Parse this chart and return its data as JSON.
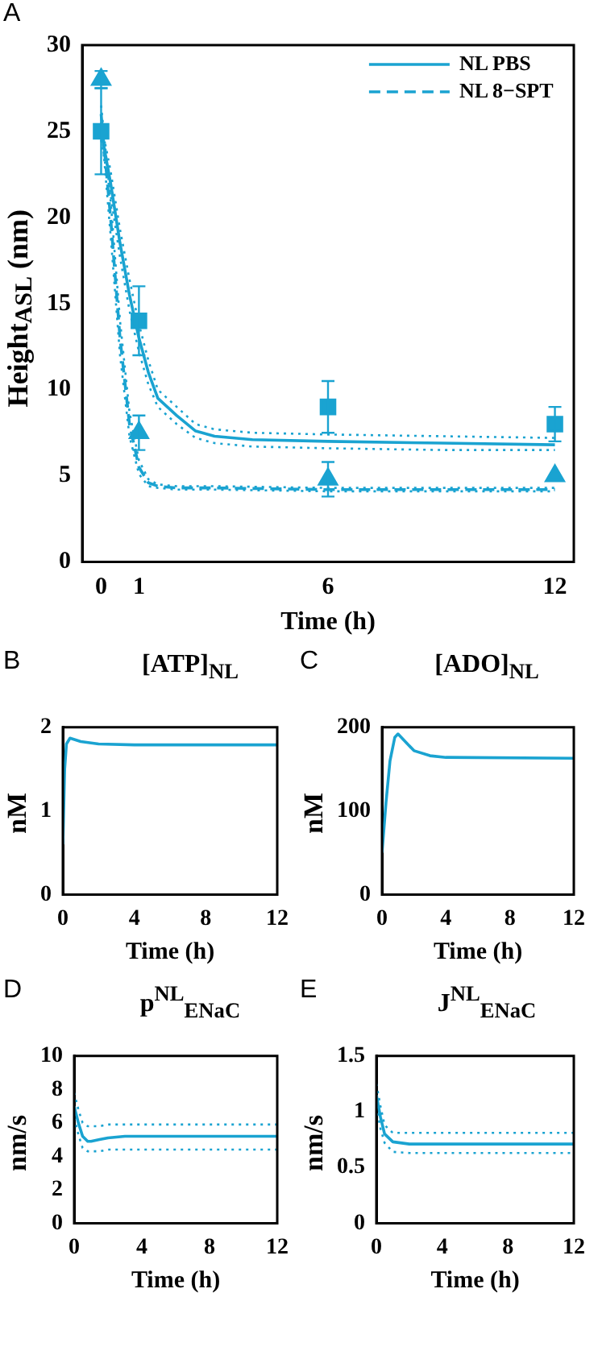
{
  "chart_data": [
    {
      "type": "line",
      "annotations": [
        "A"
      ],
      "xlabel": "Time (h)",
      "ylabel": "Height$_{ASL}$ (nm)",
      "xlim": [
        -0.5,
        12.5
      ],
      "xticks": [
        0,
        1,
        6,
        12
      ],
      "ylim": [
        0,
        30
      ],
      "yticks": [
        0,
        5,
        10,
        15,
        20,
        25,
        30
      ],
      "grid": false,
      "legend": "top right",
      "series": [
        {
          "name": "NL PBS",
          "color": "#1aa3d1",
          "line_style": "solid",
          "marker": "none",
          "x": [
            0,
            0.25,
            0.5,
            0.75,
            1,
            1.25,
            1.5,
            2,
            2.5,
            3,
            4,
            6,
            9,
            12
          ],
          "values": [
            25,
            22,
            18.5,
            15.5,
            13,
            11,
            9.5,
            8.5,
            7.6,
            7.3,
            7.1,
            7,
            6.9,
            6.8
          ]
        },
        {
          "color": "#1aa3d1",
          "line_style": "dotted",
          "marker": "none",
          "x": [
            0,
            0.25,
            0.5,
            0.75,
            1,
            1.25,
            1.5,
            2,
            2.5,
            3,
            4,
            6,
            9,
            12
          ],
          "values": [
            24.5,
            21.3,
            17.7,
            14.6,
            12.2,
            10.3,
            9,
            8,
            7.2,
            6.9,
            6.7,
            6.6,
            6.5,
            6.5
          ]
        },
        {
          "color": "#1aa3d1",
          "line_style": "dotted",
          "marker": "none",
          "x": [
            0,
            0.25,
            0.5,
            0.75,
            1,
            1.25,
            1.5,
            2,
            2.5,
            3,
            4,
            6,
            9,
            12
          ],
          "values": [
            25.5,
            22.7,
            19.3,
            16.4,
            13.8,
            11.7,
            10,
            9,
            8,
            7.7,
            7.5,
            7.4,
            7.3,
            7.2
          ]
        },
        {
          "name": "NL 8−SPT",
          "color": "#1aa3d1",
          "line_style": "dashed",
          "marker": "none",
          "x": [
            0,
            0.25,
            0.5,
            0.75,
            1,
            1.25,
            1.5,
            2,
            3,
            6,
            12
          ],
          "values": [
            26,
            20,
            13,
            8,
            5.5,
            4.6,
            4.4,
            4.3,
            4.3,
            4.2,
            4.2
          ]
        },
        {
          "color": "#1aa3d1",
          "line_style": "dotted",
          "marker": "none",
          "x": [
            0,
            0.25,
            0.5,
            0.75,
            1,
            1.25,
            1.5,
            2,
            3,
            6,
            12
          ],
          "values": [
            25.5,
            19,
            12,
            7.3,
            5.1,
            4.4,
            4.3,
            4.2,
            4.2,
            4.1,
            4.1
          ]
        },
        {
          "color": "#1aa3d1",
          "line_style": "dotted",
          "marker": "none",
          "x": [
            0,
            0.25,
            0.5,
            0.75,
            1,
            1.25,
            1.5,
            2,
            3,
            6,
            12
          ],
          "values": [
            26.5,
            21,
            14,
            8.7,
            5.9,
            4.8,
            4.5,
            4.4,
            4.4,
            4.3,
            4.3
          ]
        },
        {
          "type": "scatter",
          "color": "#1aa3d1",
          "marker": "square",
          "x": [
            0,
            1,
            6,
            12
          ],
          "values": [
            25,
            14,
            9,
            8
          ],
          "errors": [
            2.5,
            2,
            1.5,
            1
          ]
        },
        {
          "type": "scatter",
          "color": "#1aa3d1",
          "marker": "triangle",
          "x": [
            0,
            1,
            6,
            12
          ],
          "values": [
            28,
            7.5,
            4.8,
            5
          ],
          "errors": [
            0.5,
            1,
            1,
            null
          ]
        }
      ]
    },
    {
      "type": "line",
      "annotations": [
        "B"
      ],
      "title": "[ATP]$_{NL}$",
      "xlabel": "Time (h)",
      "ylabel": "nM",
      "xlim": [
        0,
        12
      ],
      "xticks": [
        0,
        4,
        8,
        12
      ],
      "ylim": [
        0,
        2
      ],
      "yticks": [
        0,
        1,
        2
      ],
      "grid": false,
      "series": [
        {
          "color": "#1aa3d1",
          "x": [
            0,
            0.1,
            0.2,
            0.4,
            1,
            2,
            4,
            12
          ],
          "values": [
            0.6,
            1.5,
            1.8,
            1.87,
            1.83,
            1.8,
            1.79,
            1.79
          ]
        }
      ]
    },
    {
      "type": "line",
      "annotations": [
        "C"
      ],
      "title": "[ADO]$_{NL}$",
      "xlabel": "Time (h)",
      "ylabel": "nM",
      "xlim": [
        0,
        12
      ],
      "xticks": [
        0,
        4,
        8,
        12
      ],
      "ylim": [
        0,
        200
      ],
      "yticks": [
        0,
        100,
        200
      ],
      "grid": false,
      "series": [
        {
          "color": "#1aa3d1",
          "x": [
            0,
            0.25,
            0.5,
            0.8,
            1,
            1.5,
            2,
            3,
            4,
            12
          ],
          "values": [
            50,
            110,
            160,
            188,
            192,
            182,
            172,
            166,
            164,
            163
          ]
        }
      ]
    },
    {
      "type": "line",
      "annotations": [
        "D"
      ],
      "title": "p$^{NL}$$_{ENaC}$",
      "xlabel": "Time (h)",
      "ylabel": "nm/s",
      "xlim": [
        0,
        12
      ],
      "xticks": [
        0,
        4,
        8,
        12
      ],
      "ylim": [
        0,
        10
      ],
      "yticks": [
        0,
        2,
        4,
        6,
        8,
        10
      ],
      "grid": false,
      "series": [
        {
          "color": "#1aa3d1",
          "line_style": "solid",
          "x": [
            0,
            0.25,
            0.5,
            0.8,
            1,
            1.5,
            2,
            3,
            4,
            12
          ],
          "values": [
            7,
            6,
            5.2,
            4.9,
            4.9,
            5,
            5.1,
            5.2,
            5.2,
            5.2
          ]
        },
        {
          "color": "#1aa3d1",
          "line_style": "dotted",
          "x": [
            0,
            0.25,
            0.5,
            0.8,
            1,
            1.5,
            2,
            3,
            4,
            12
          ],
          "values": [
            6.3,
            5.3,
            4.5,
            4.3,
            4.3,
            4.3,
            4.4,
            4.4,
            4.4,
            4.4
          ]
        },
        {
          "color": "#1aa3d1",
          "line_style": "dotted",
          "x": [
            0,
            0.25,
            0.5,
            0.8,
            1,
            1.5,
            2,
            3,
            4,
            12
          ],
          "values": [
            7.8,
            6.8,
            6,
            5.8,
            5.8,
            5.8,
            5.9,
            5.9,
            5.9,
            5.9
          ]
        }
      ]
    },
    {
      "type": "line",
      "annotations": [
        "E"
      ],
      "title": "J$^{NL}$$_{ENaC}$",
      "xlabel": "Time (h)",
      "ylabel": "nm/s",
      "xlim": [
        0,
        12
      ],
      "xticks": [
        0,
        4,
        8,
        12
      ],
      "ylim": [
        0,
        1.5
      ],
      "yticks": [
        0,
        0.5,
        1,
        1.5
      ],
      "grid": false,
      "series": [
        {
          "color": "#1aa3d1",
          "line_style": "solid",
          "x": [
            0,
            0.25,
            0.5,
            1,
            2,
            4,
            12
          ],
          "values": [
            1.15,
            0.95,
            0.8,
            0.73,
            0.71,
            0.71,
            0.71
          ]
        },
        {
          "color": "#1aa3d1",
          "line_style": "dotted",
          "x": [
            0,
            0.25,
            0.5,
            1,
            2,
            4,
            12
          ],
          "values": [
            1.05,
            0.85,
            0.72,
            0.64,
            0.63,
            0.63,
            0.63
          ]
        },
        {
          "color": "#1aa3d1",
          "line_style": "dotted",
          "x": [
            0,
            0.25,
            0.5,
            1,
            2,
            4,
            12
          ],
          "values": [
            1.25,
            1.05,
            0.88,
            0.81,
            0.81,
            0.81,
            0.81
          ]
        }
      ]
    }
  ]
}
